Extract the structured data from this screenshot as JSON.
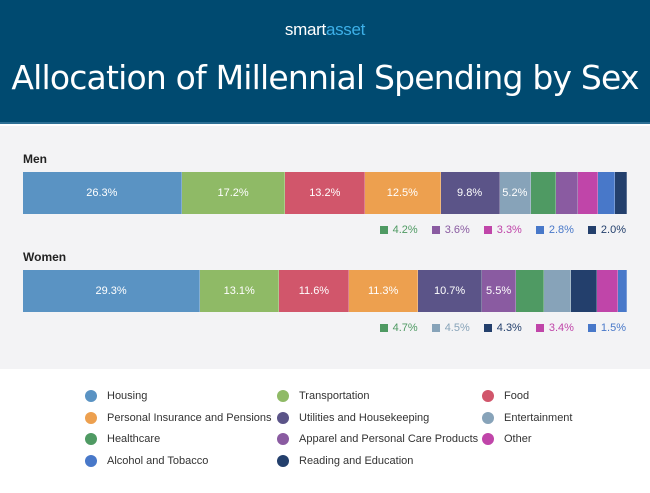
{
  "header": {
    "logo": "smartasset",
    "logo_part1": "smart",
    "logo_part2": "asset",
    "title": "Allocation of Millennial Spending by Sex"
  },
  "chart_data": {
    "type": "bar",
    "orientation": "horizontal-stacked-100",
    "title": "Allocation of Millennial Spending by Sex",
    "categories": [
      "Men",
      "Women"
    ],
    "unit": "%",
    "series": [
      {
        "name": "Housing",
        "color": "#5a93c3",
        "values": [
          26.3,
          29.3
        ]
      },
      {
        "name": "Transportation",
        "color": "#8fba66",
        "values": [
          17.2,
          13.1
        ]
      },
      {
        "name": "Food",
        "color": "#d1566b",
        "values": [
          13.2,
          11.6
        ]
      },
      {
        "name": "Personal Insurance and Pensions",
        "color": "#eda04f",
        "values": [
          12.5,
          11.3
        ]
      },
      {
        "name": "Utilities and Housekeeping",
        "color": "#5b5488",
        "values": [
          9.8,
          10.7
        ]
      },
      {
        "name": "Entertainment",
        "color": "#87a3b9",
        "values": [
          5.2,
          4.5
        ]
      },
      {
        "name": "Healthcare",
        "color": "#4f9a63",
        "values": [
          4.2,
          4.7
        ]
      },
      {
        "name": "Apparel and Personal Care Products",
        "color": "#8a5ba1",
        "values": [
          3.6,
          5.5
        ]
      },
      {
        "name": "Other",
        "color": "#c045a9",
        "values": [
          3.3,
          3.4
        ]
      },
      {
        "name": "Alcohol and Tobacco",
        "color": "#4878c9",
        "values": [
          2.8,
          1.5
        ]
      },
      {
        "name": "Reading and Education",
        "color": "#233f6c",
        "values": [
          2.0,
          4.3
        ]
      }
    ],
    "segment_order": [
      [
        "Housing",
        "Transportation",
        "Food",
        "Personal Insurance and Pensions",
        "Utilities and Housekeeping",
        "Entertainment",
        "Healthcare",
        "Apparel and Personal Care Products",
        "Other",
        "Alcohol and Tobacco",
        "Reading and Education"
      ],
      [
        "Housing",
        "Transportation",
        "Food",
        "Personal Insurance and Pensions",
        "Utilities and Housekeeping",
        "Apparel and Personal Care Products",
        "Healthcare",
        "Entertainment",
        "Reading and Education",
        "Other",
        "Alcohol and Tobacco"
      ]
    ],
    "legend_order": [
      "Housing",
      "Transportation",
      "Food",
      "Personal Insurance and Pensions",
      "Utilities and Housekeeping",
      "Entertainment",
      "Healthcare",
      "Apparel and Personal Care Products",
      "Other",
      "Alcohol and Tobacco",
      "Reading and Education"
    ],
    "legend_position": "bottom"
  }
}
